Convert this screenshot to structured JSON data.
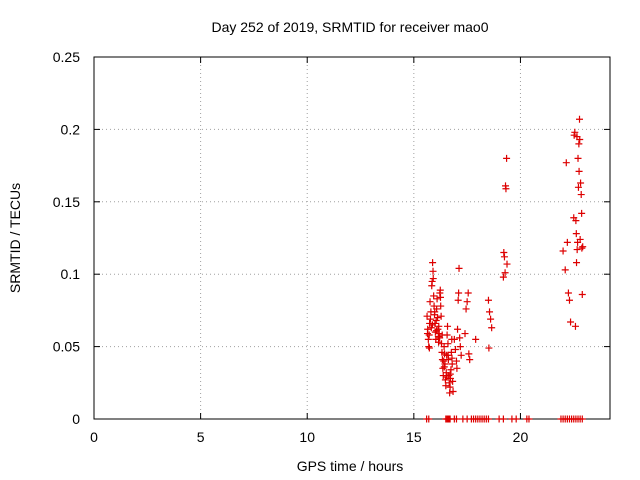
{
  "chart_data": {
    "type": "scatter",
    "title": "Day 252 of 2019, SRMTID for receiver mao0",
    "xlabel": "GPS time / hours",
    "ylabel": "SRMTID / TECUs",
    "xlim": [
      0,
      24.2
    ],
    "ylim": [
      0,
      0.25
    ],
    "grid": true,
    "x_ticks": [
      0,
      5,
      10,
      15,
      20
    ],
    "x_tick_labels": [
      "0",
      "5",
      "10",
      "15",
      "20"
    ],
    "y_ticks": [
      0,
      0.05,
      0.1,
      0.15,
      0.2,
      0.25
    ],
    "y_tick_labels": [
      "0",
      "0.05",
      "0.1",
      "0.15",
      "0.2",
      "0.25"
    ],
    "marker": "+",
    "series": [
      {
        "name": "SRMTID",
        "color": "#dd0000",
        "points": [
          [
            15.62,
            0.071
          ],
          [
            15.65,
            0.062
          ],
          [
            15.68,
            0.055
          ],
          [
            15.7,
            0.05
          ],
          [
            15.72,
            0.058
          ],
          [
            15.74,
            0.066
          ],
          [
            15.76,
            0.081
          ],
          [
            15.78,
            0.069
          ],
          [
            15.8,
            0.074
          ],
          [
            15.82,
            0.063
          ],
          [
            15.84,
            0.092
          ],
          [
            15.86,
            0.095
          ],
          [
            15.88,
            0.108
          ],
          [
            15.9,
            0.102
          ],
          [
            15.91,
            0.097
          ],
          [
            15.93,
            0.085
          ],
          [
            15.95,
            0.078
          ],
          [
            15.97,
            0.072
          ],
          [
            15.99,
            0.066
          ],
          [
            16.01,
            0.06
          ],
          [
            16.03,
            0.055
          ],
          [
            16.05,
            0.068
          ],
          [
            16.07,
            0.076
          ],
          [
            16.09,
            0.083
          ],
          [
            16.11,
            0.07
          ],
          [
            16.13,
            0.062
          ],
          [
            16.15,
            0.057
          ],
          [
            16.17,
            0.064
          ],
          [
            16.19,
            0.059
          ],
          [
            16.21,
            0.056
          ],
          [
            16.22,
            0.087
          ],
          [
            16.24,
            0.089
          ],
          [
            16.26,
            0.078
          ],
          [
            16.28,
            0.071
          ],
          [
            16.3,
            0.052
          ],
          [
            16.32,
            0.046
          ],
          [
            16.34,
            0.041
          ],
          [
            16.36,
            0.035
          ],
          [
            16.38,
            0.03
          ],
          [
            16.4,
            0.04
          ],
          [
            16.42,
            0.05
          ],
          [
            16.44,
            0.045
          ],
          [
            16.46,
            0.038
          ],
          [
            16.48,
            0.027
          ],
          [
            16.5,
            0.023
          ],
          [
            16.52,
            0.032
          ],
          [
            16.54,
            0.044
          ],
          [
            16.56,
            0.058
          ],
          [
            16.58,
            0.064
          ],
          [
            16.6,
            0.052
          ],
          [
            16.62,
            0.041
          ],
          [
            16.64,
            0.03
          ],
          [
            16.66,
            0.025
          ],
          [
            16.68,
            0.018
          ],
          [
            16.7,
            0.022
          ],
          [
            16.72,
            0.028
          ],
          [
            16.74,
            0.034
          ],
          [
            16.76,
            0.046
          ],
          [
            16.78,
            0.055
          ],
          [
            16.8,
            0.038
          ],
          [
            16.82,
            0.026
          ],
          [
            16.84,
            0.019
          ],
          [
            15.64,
            0.059
          ],
          [
            15.73,
            0.049
          ],
          [
            15.87,
            0.065
          ],
          [
            15.98,
            0.074
          ],
          [
            16.06,
            0.061
          ],
          [
            16.16,
            0.053
          ],
          [
            16.25,
            0.084
          ],
          [
            16.33,
            0.058
          ],
          [
            16.43,
            0.036
          ],
          [
            16.53,
            0.029
          ],
          [
            16.61,
            0.044
          ],
          [
            16.71,
            0.031
          ],
          [
            16.79,
            0.042
          ],
          [
            16.9,
            0.055
          ],
          [
            16.95,
            0.048
          ],
          [
            17.0,
            0.04
          ],
          [
            17.02,
            0.035
          ],
          [
            17.05,
            0.062
          ],
          [
            17.08,
            0.082
          ],
          [
            17.1,
            0.087
          ],
          [
            17.12,
            0.104
          ],
          [
            17.15,
            0.056
          ],
          [
            17.18,
            0.05
          ],
          [
            17.22,
            0.044
          ],
          [
            17.4,
            0.059
          ],
          [
            17.45,
            0.076
          ],
          [
            17.5,
            0.081
          ],
          [
            17.55,
            0.087
          ],
          [
            17.58,
            0.045
          ],
          [
            17.62,
            0.041
          ],
          [
            17.9,
            0.055
          ],
          [
            18.5,
            0.082
          ],
          [
            18.55,
            0.074
          ],
          [
            18.6,
            0.069
          ],
          [
            18.65,
            0.063
          ],
          [
            18.52,
            0.049
          ],
          [
            19.2,
            0.098
          ],
          [
            19.22,
            0.115
          ],
          [
            19.25,
            0.112
          ],
          [
            19.28,
            0.101
          ],
          [
            19.3,
            0.161
          ],
          [
            19.32,
            0.159
          ],
          [
            19.35,
            0.18
          ],
          [
            19.37,
            0.107
          ],
          [
            22.0,
            0.116
          ],
          [
            22.1,
            0.103
          ],
          [
            22.15,
            0.177
          ],
          [
            22.2,
            0.122
          ],
          [
            22.25,
            0.087
          ],
          [
            22.3,
            0.082
          ],
          [
            22.35,
            0.067
          ],
          [
            22.5,
            0.139
          ],
          [
            22.52,
            0.196
          ],
          [
            22.55,
            0.198
          ],
          [
            22.58,
            0.064
          ],
          [
            22.6,
            0.137
          ],
          [
            22.62,
            0.128
          ],
          [
            22.65,
            0.195
          ],
          [
            22.68,
            0.122
          ],
          [
            22.7,
            0.18
          ],
          [
            22.72,
            0.16
          ],
          [
            22.75,
            0.171
          ],
          [
            22.77,
            0.207
          ],
          [
            22.8,
            0.124
          ],
          [
            22.82,
            0.163
          ],
          [
            22.85,
            0.155
          ],
          [
            22.87,
            0.142
          ],
          [
            22.88,
            0.118
          ],
          [
            22.9,
            0.086
          ],
          [
            22.92,
            0.119
          ],
          [
            22.74,
            0.19
          ],
          [
            22.78,
            0.193
          ],
          [
            22.66,
            0.117
          ],
          [
            22.63,
            0.108
          ],
          [
            15.6,
            0
          ],
          [
            15.7,
            0
          ],
          [
            16.5,
            0
          ],
          [
            16.55,
            0
          ],
          [
            16.6,
            0
          ],
          [
            16.65,
            0
          ],
          [
            16.7,
            0
          ],
          [
            16.9,
            0
          ],
          [
            17.0,
            0
          ],
          [
            17.3,
            0
          ],
          [
            17.5,
            0
          ],
          [
            17.7,
            0
          ],
          [
            17.8,
            0
          ],
          [
            17.9,
            0
          ],
          [
            18.0,
            0
          ],
          [
            18.1,
            0
          ],
          [
            18.2,
            0
          ],
          [
            18.3,
            0
          ],
          [
            18.4,
            0
          ],
          [
            18.5,
            0
          ],
          [
            19.0,
            0
          ],
          [
            19.2,
            0
          ],
          [
            19.6,
            0
          ],
          [
            19.8,
            0
          ],
          [
            20.3,
            0
          ],
          [
            20.4,
            0
          ],
          [
            21.9,
            0
          ],
          [
            22.0,
            0
          ],
          [
            22.1,
            0
          ],
          [
            22.2,
            0
          ],
          [
            22.3,
            0
          ],
          [
            22.4,
            0
          ],
          [
            22.5,
            0
          ],
          [
            22.6,
            0
          ],
          [
            22.7,
            0
          ],
          [
            22.8,
            0
          ],
          [
            22.9,
            0
          ]
        ]
      }
    ]
  }
}
